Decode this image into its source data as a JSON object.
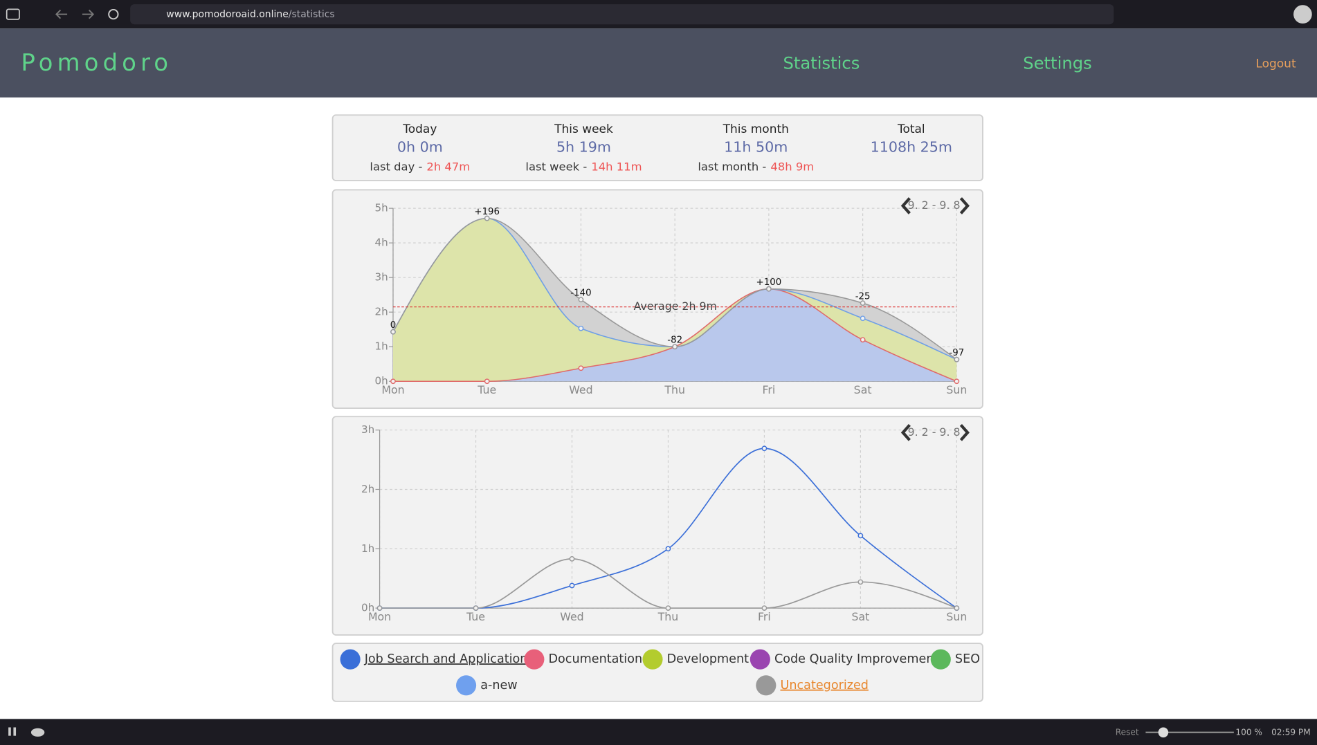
{
  "browser": {
    "url_host": "www.pomodoroaid.online",
    "url_path": "/statistics",
    "zoom_reset": "Reset",
    "zoom": "100 %",
    "clock": "02:59 PM"
  },
  "header": {
    "logo": "Pomodoro",
    "nav": [
      "Statistics",
      "Settings"
    ],
    "logout": "Logout"
  },
  "summary": [
    {
      "label": "Today",
      "value": "0h 0m",
      "prev_label": "last day -",
      "prev_value": "2h 47m"
    },
    {
      "label": "This week",
      "value": "5h 19m",
      "prev_label": "last week -",
      "prev_value": "14h 11m"
    },
    {
      "label": "This month",
      "value": "11h 50m",
      "prev_label": "last month -",
      "prev_value": "48h 9m"
    },
    {
      "label": "Total",
      "value": "1108h 25m"
    }
  ],
  "charts": [
    {
      "type": "stacked_area",
      "range_label": "9. 2 - 9. 8",
      "categories": [
        "Mon",
        "Tue",
        "Wed",
        "Thu",
        "Fri",
        "Sat",
        "Sun"
      ],
      "ylim": [
        0,
        5
      ],
      "yticks": [
        {
          "value": 0,
          "label": "0h"
        },
        {
          "value": 1,
          "label": "1h"
        },
        {
          "value": 2,
          "label": "2h"
        },
        {
          "value": 3,
          "label": "3h"
        },
        {
          "value": 4,
          "label": "4h"
        },
        {
          "value": 5,
          "label": "5h"
        }
      ],
      "grid": true,
      "series": [
        {
          "color": "#b9c8ec",
          "line_color": "#e06a6a",
          "values": [
            0,
            0,
            0.38,
            1.0,
            2.67,
            1.2,
            0
          ]
        },
        {
          "color": "#dde4aa",
          "line_color": "#6f9fe6",
          "values": [
            1.43,
            4.71,
            1.15,
            0,
            0,
            0.62,
            0.63
          ]
        },
        {
          "color": "#d2d2d2",
          "line_color": "#999999",
          "values": [
            0,
            0,
            0.83,
            0,
            0,
            0.44,
            0
          ]
        }
      ],
      "point_labels": [
        "0",
        "+196",
        "-140",
        "-82",
        "+100",
        "-25",
        "-97"
      ],
      "average": {
        "value": 2.15,
        "label": "Average 2h 9m"
      }
    },
    {
      "type": "line",
      "range_label": "9. 2 - 9. 8",
      "categories": [
        "Mon",
        "Tue",
        "Wed",
        "Thu",
        "Fri",
        "Sat",
        "Sun"
      ],
      "ylim": [
        0,
        3
      ],
      "yticks": [
        {
          "value": 0,
          "label": "0h"
        },
        {
          "value": 1,
          "label": "1h"
        },
        {
          "value": 2,
          "label": "2h"
        },
        {
          "value": 3,
          "label": "3h"
        }
      ],
      "grid": true,
      "series": [
        {
          "color": "#3b6fd8",
          "values": [
            0,
            0,
            0.38,
            1.0,
            2.69,
            1.22,
            0
          ]
        },
        {
          "color": "#999999",
          "values": [
            0,
            0,
            0.83,
            0,
            0,
            0.44,
            0
          ]
        }
      ]
    }
  ],
  "legend": [
    {
      "name": "Job Search and Application",
      "color": "#3a6fd8",
      "link": true
    },
    {
      "name": "Documentation",
      "color": "#e8607a",
      "link": false
    },
    {
      "name": "Development",
      "color": "#b3cc2e",
      "link": false
    },
    {
      "name": "Code Quality Improvement",
      "color": "#9a44b0",
      "link": false
    },
    {
      "name": "SEO",
      "color": "#5cb85c",
      "link": false
    },
    {
      "name": "a-new",
      "color": "#6fa0ee",
      "link": false
    },
    {
      "name": "Uncategorized",
      "color": "#999999",
      "link": true
    }
  ]
}
